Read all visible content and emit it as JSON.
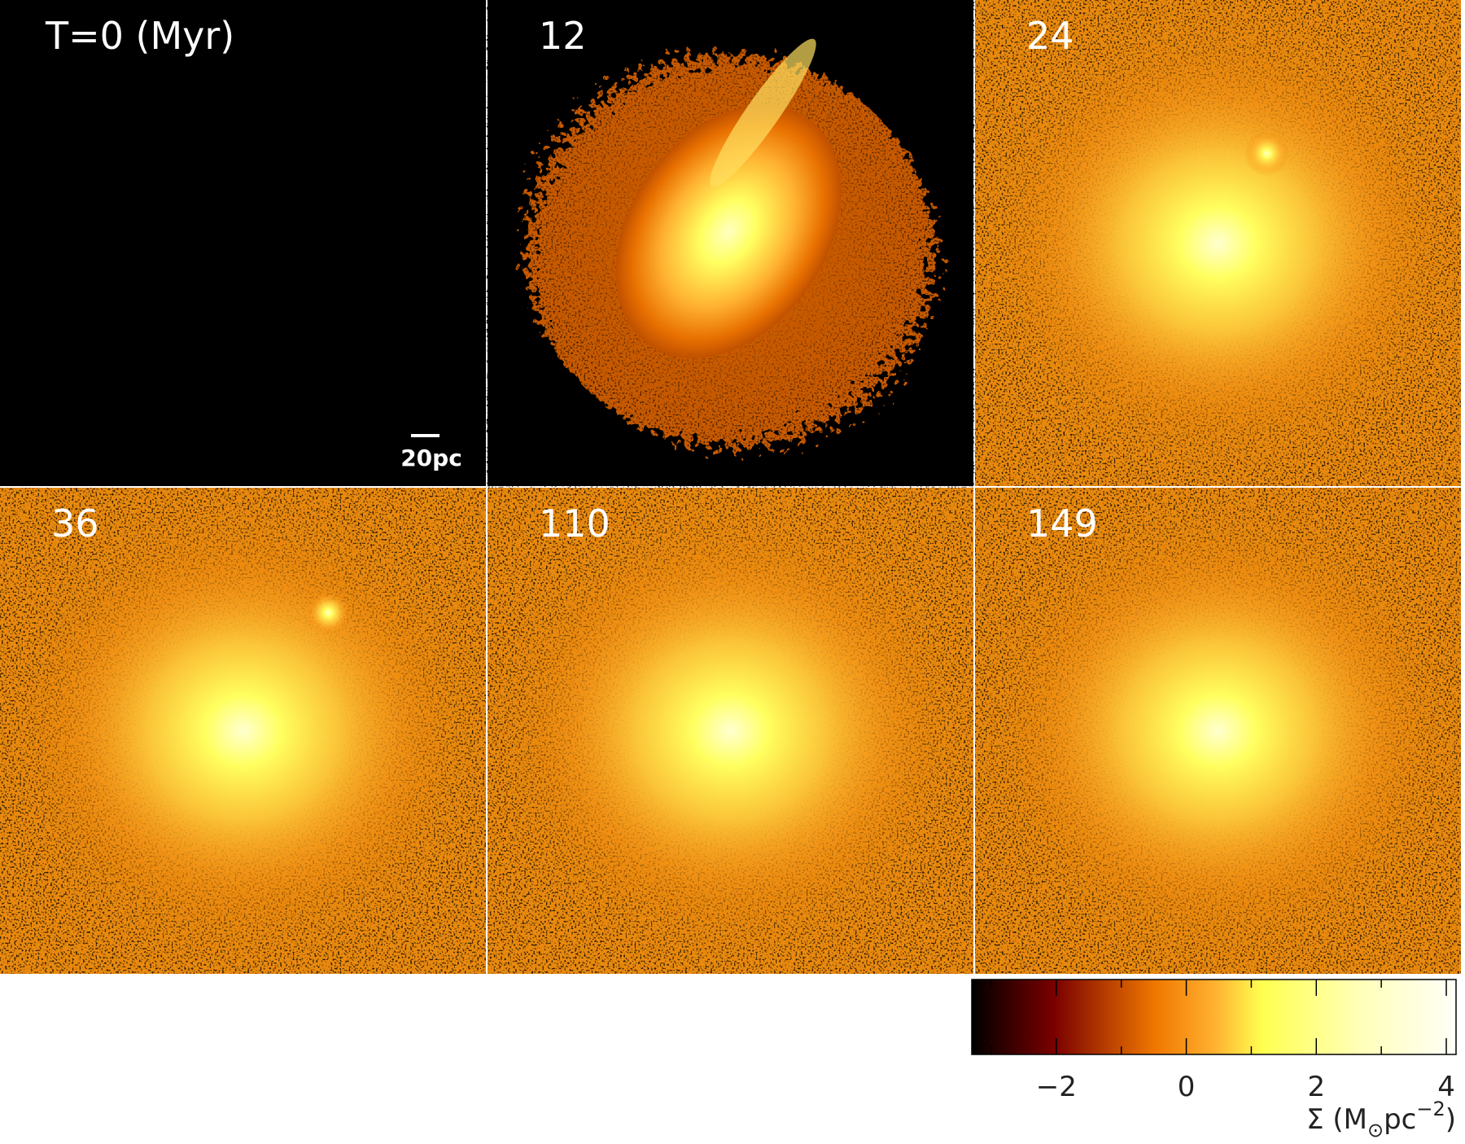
{
  "chart_data": {
    "type": "image-panels",
    "panels": [
      "T=0 (Myr)",
      "12",
      "24",
      "36",
      "110",
      "149"
    ],
    "scale_bar": "20pc",
    "colorbar": {
      "xlim": [
        -3.3,
        4.15
      ],
      "xticks": [
        {
          "value": -2,
          "label": "−2"
        },
        0,
        2,
        4
      ],
      "minor_ticks": [
        -3,
        -1,
        1,
        3
      ],
      "label": {
        "symbol": "Σ (M",
        "sub": "⊙",
        "unit": "pc",
        "sup": "−2",
        "close": ")"
      }
    }
  }
}
